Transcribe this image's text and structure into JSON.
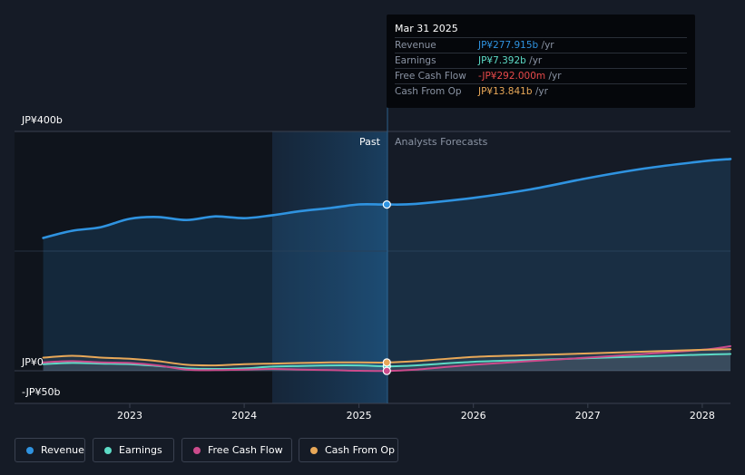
{
  "chart_data": {
    "type": "area",
    "y_labels": [
      "JP¥400b",
      "JP¥0",
      "-JP¥50b"
    ],
    "x_ticks": [
      "2023",
      "2024",
      "2025",
      "2026",
      "2027",
      "2028"
    ],
    "ylim": [
      -50,
      400
    ],
    "regions": {
      "past_label": "Past",
      "forecast_label": "Analysts Forecasts",
      "divider_x": "2025-03-31"
    },
    "series": [
      {
        "name": "Revenue",
        "color": "#2f93e0",
        "points": [
          [
            "2022-03-31",
            222
          ],
          [
            "2022-07-01",
            234
          ],
          [
            "2022-10-01",
            240
          ],
          [
            "2023-01-01",
            254
          ],
          [
            "2023-04-01",
            257
          ],
          [
            "2023-07-01",
            252
          ],
          [
            "2023-10-01",
            258
          ],
          [
            "2024-01-01",
            255
          ],
          [
            "2024-04-01",
            260
          ],
          [
            "2024-07-01",
            267
          ],
          [
            "2024-10-01",
            272
          ],
          [
            "2025-01-01",
            278
          ],
          [
            "2025-03-31",
            277.9
          ],
          [
            "2025-07-01",
            279
          ],
          [
            "2026-01-01",
            289
          ],
          [
            "2026-07-01",
            303
          ],
          [
            "2027-01-01",
            322
          ],
          [
            "2027-07-01",
            338
          ],
          [
            "2028-01-01",
            350
          ],
          [
            "2028-03-31",
            354
          ]
        ]
      },
      {
        "name": "Earnings",
        "color": "#5ddbc6",
        "points": [
          [
            "2022-03-31",
            11
          ],
          [
            "2022-07-01",
            13
          ],
          [
            "2022-10-01",
            12
          ],
          [
            "2023-01-01",
            11
          ],
          [
            "2023-04-01",
            8
          ],
          [
            "2023-07-01",
            4
          ],
          [
            "2023-10-01",
            3
          ],
          [
            "2024-01-01",
            4
          ],
          [
            "2024-04-01",
            7
          ],
          [
            "2024-07-01",
            8
          ],
          [
            "2024-10-01",
            9
          ],
          [
            "2025-01-01",
            9
          ],
          [
            "2025-03-31",
            7.392
          ],
          [
            "2025-07-01",
            9
          ],
          [
            "2026-01-01",
            15
          ],
          [
            "2026-07-01",
            18
          ],
          [
            "2027-01-01",
            21
          ],
          [
            "2027-07-01",
            24
          ],
          [
            "2028-01-01",
            27
          ],
          [
            "2028-03-31",
            28
          ]
        ]
      },
      {
        "name": "Free Cash Flow",
        "color": "#cc4b8c",
        "points": [
          [
            "2022-03-31",
            14
          ],
          [
            "2022-07-01",
            16
          ],
          [
            "2022-10-01",
            14
          ],
          [
            "2023-01-01",
            13
          ],
          [
            "2023-04-01",
            9
          ],
          [
            "2023-07-01",
            2
          ],
          [
            "2023-10-01",
            1
          ],
          [
            "2024-01-01",
            2
          ],
          [
            "2024-04-01",
            3
          ],
          [
            "2024-07-01",
            2
          ],
          [
            "2024-10-01",
            1
          ],
          [
            "2025-01-01",
            0
          ],
          [
            "2025-03-31",
            -0.292
          ],
          [
            "2025-07-01",
            2
          ],
          [
            "2026-01-01",
            10
          ],
          [
            "2026-07-01",
            16
          ],
          [
            "2027-01-01",
            22
          ],
          [
            "2027-07-01",
            28
          ],
          [
            "2028-01-01",
            35
          ],
          [
            "2028-03-31",
            41
          ]
        ]
      },
      {
        "name": "Cash From Op",
        "color": "#e8a858",
        "points": [
          [
            "2022-03-31",
            22
          ],
          [
            "2022-07-01",
            25
          ],
          [
            "2022-10-01",
            22
          ],
          [
            "2023-01-01",
            20
          ],
          [
            "2023-04-01",
            16
          ],
          [
            "2023-07-01",
            10
          ],
          [
            "2023-10-01",
            9
          ],
          [
            "2024-01-01",
            11
          ],
          [
            "2024-04-01",
            12
          ],
          [
            "2024-07-01",
            13
          ],
          [
            "2024-10-01",
            14
          ],
          [
            "2025-01-01",
            14
          ],
          [
            "2025-03-31",
            13.841
          ],
          [
            "2025-07-01",
            16
          ],
          [
            "2026-01-01",
            23
          ],
          [
            "2026-07-01",
            26
          ],
          [
            "2027-01-01",
            29
          ],
          [
            "2027-07-01",
            32
          ],
          [
            "2028-01-01",
            35
          ],
          [
            "2028-03-31",
            36
          ]
        ]
      }
    ]
  },
  "tooltip": {
    "date": "Mar 31 2025",
    "rows": [
      {
        "label": "Revenue",
        "value": "JP¥277.915b",
        "unit": " /yr",
        "color": "#2f93e0"
      },
      {
        "label": "Earnings",
        "value": "JP¥7.392b",
        "unit": " /yr",
        "color": "#5ddbc6"
      },
      {
        "label": "Free Cash Flow",
        "value": "-JP¥292.000m",
        "unit": " /yr",
        "color": "#e84a4a"
      },
      {
        "label": "Cash From Op",
        "value": "JP¥13.841b",
        "unit": " /yr",
        "color": "#e8a858"
      }
    ]
  },
  "legend": [
    {
      "label": "Revenue",
      "color": "#2f93e0"
    },
    {
      "label": "Earnings",
      "color": "#5ddbc6"
    },
    {
      "label": "Free Cash Flow",
      "color": "#cc4b8c"
    },
    {
      "label": "Cash From Op",
      "color": "#e8a858"
    }
  ]
}
